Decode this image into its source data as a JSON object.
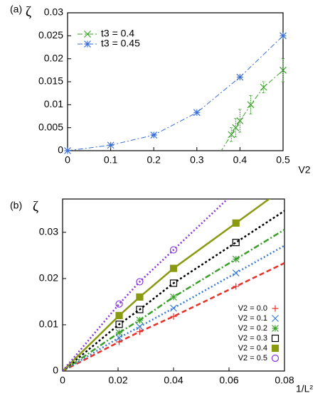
{
  "chart_data": [
    {
      "type": "line",
      "panel": "(a)",
      "ylabel": "ζ",
      "xlabel": "V2",
      "xlim": [
        0,
        0.5
      ],
      "ylim": [
        0,
        0.03
      ],
      "xticks": [
        0,
        0.1,
        0.2,
        0.3,
        0.4,
        0.5
      ],
      "yticks": [
        0,
        0.005,
        0.01,
        0.015,
        0.02,
        0.025,
        0.03
      ],
      "legend": "upper left",
      "series": [
        {
          "name": "t3 = 0.4",
          "color": "#3aa02a",
          "marker": "x",
          "extend": "both",
          "x": [
            0.38,
            0.39,
            0.4,
            0.425,
            0.455,
            0.5
          ],
          "values": [
            0.0035,
            0.005,
            0.0065,
            0.01,
            0.0138,
            0.0175
          ],
          "errors": [
            0.0015,
            0.002,
            0.0025,
            0.002,
            0.0012,
            0.0025
          ]
        },
        {
          "name": "t3 = 0.45",
          "color": "#3a6fd8",
          "marker": "star",
          "extend": "none",
          "x": [
            0,
            0.1,
            0.2,
            0.3,
            0.4,
            0.5
          ],
          "values": [
            0,
            0.0012,
            0.0034,
            0.0083,
            0.016,
            0.025
          ]
        }
      ]
    },
    {
      "type": "line",
      "panel": "(b)",
      "ylabel": "ζ",
      "xlabel": "1/L²",
      "xlim": [
        0,
        0.08
      ],
      "ylim": [
        0,
        0.0372
      ],
      "xticks": [
        0,
        0.02,
        0.04,
        0.06,
        0.08
      ],
      "yticks": [
        0,
        0.01,
        0.02,
        0.03
      ],
      "legend": "lower right",
      "series": [
        {
          "name": "V2 = 0.0",
          "color": "#e8312a",
          "marker": "plus",
          "extend": "origin",
          "dash": "7,4",
          "x": [
            0.0204,
            0.0278,
            0.04,
            0.0625
          ],
          "values": [
            0.0063,
            0.0085,
            0.0118,
            0.0183
          ]
        },
        {
          "name": "V2 = 0.1",
          "color": "#3a7bd5",
          "marker": "x",
          "extend": "origin",
          "dash": "2,3",
          "x": [
            0.0204,
            0.0278,
            0.04,
            0.0625
          ],
          "values": [
            0.0072,
            0.0096,
            0.0136,
            0.0212
          ]
        },
        {
          "name": "V2 = 0.2",
          "color": "#3aa02a",
          "marker": "star",
          "extend": "origin",
          "dash": "8,3,2,3",
          "x": [
            0.0204,
            0.0278,
            0.04,
            0.0625
          ],
          "values": [
            0.0083,
            0.011,
            0.016,
            0.0242
          ]
        },
        {
          "name": "V2 = 0.3",
          "color": "#000000",
          "marker": "square",
          "extend": "origin",
          "dash": "3,3",
          "x": [
            0.0204,
            0.0278,
            0.04,
            0.0625
          ],
          "values": [
            0.0101,
            0.0133,
            0.019,
            0.0278
          ]
        },
        {
          "name": "V2 = 0.4",
          "color": "#8a9a10",
          "marker": "filled-square",
          "extend": "origin",
          "dash": "none",
          "x": [
            0.0204,
            0.0278,
            0.04,
            0.0625
          ],
          "values": [
            0.012,
            0.016,
            0.0222,
            0.032
          ]
        },
        {
          "name": "V2 = 0.5",
          "color": "#8833dd",
          "marker": "circle",
          "extend": "origin",
          "dash": "2,3",
          "x": [
            0.0204,
            0.0278,
            0.04
          ],
          "values": [
            0.0145,
            0.0193,
            0.0262
          ]
        }
      ]
    }
  ]
}
